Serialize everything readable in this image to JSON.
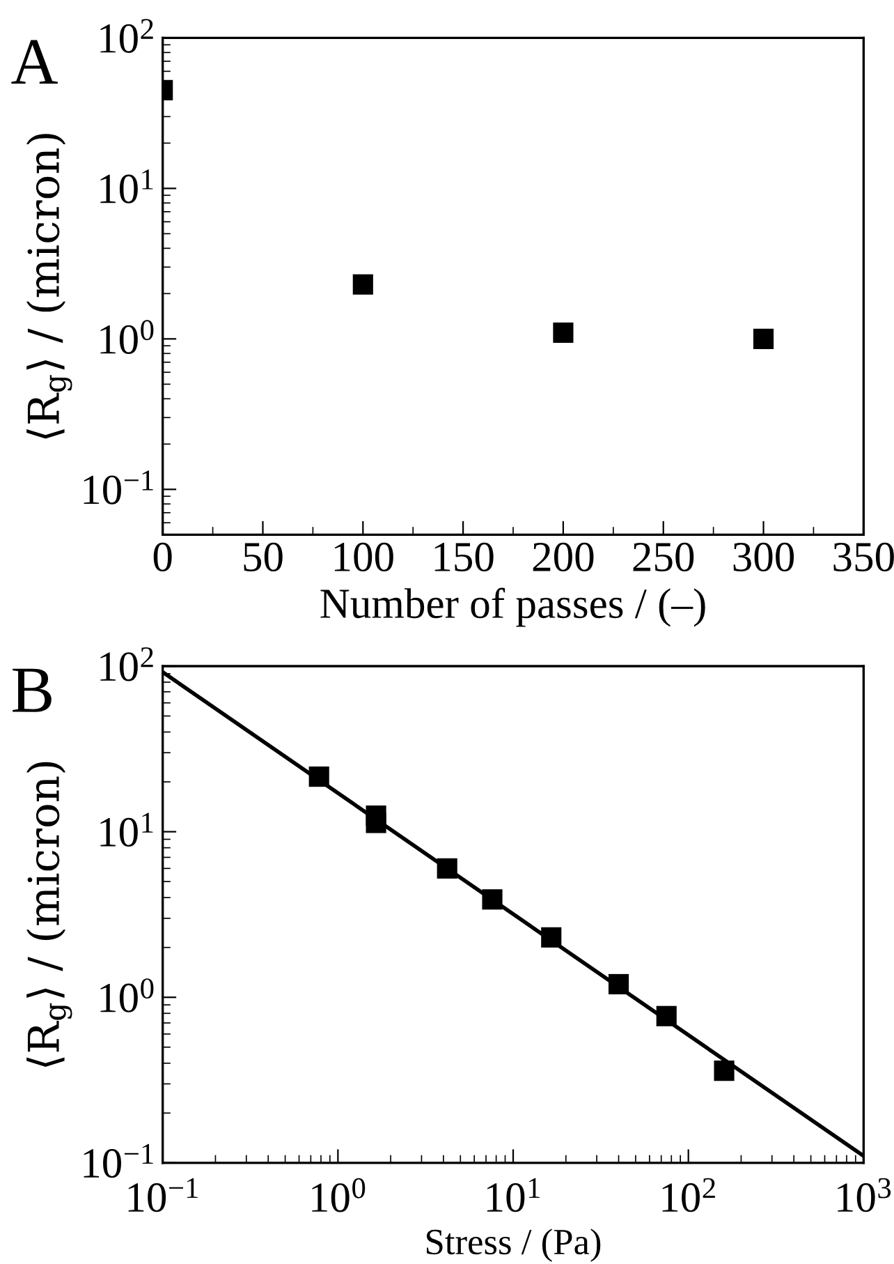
{
  "chart_data": [
    {
      "type": "scatter",
      "title": "A",
      "xlabel": "Number of passes / (–)",
      "ylabel": "⟨R$_{g}$⟩ / (micron)",
      "log": "y",
      "marker": "square",
      "grid": false,
      "legend": false,
      "x": [
        0,
        100,
        200,
        300
      ],
      "series": [
        {
          "color": "#000000",
          "values": [
            45,
            2.3,
            1.1,
            1.0
          ]
        }
      ],
      "xlim": [
        0,
        350
      ],
      "xticks": [
        0,
        50,
        100,
        150,
        200,
        250,
        300,
        350
      ],
      "ylim": [
        0.05,
        100
      ],
      "yticks": [
        {
          "value": 0.1,
          "label": "10$^{−1}$"
        },
        {
          "value": 1,
          "label": "10$^{0}$"
        },
        {
          "value": 10,
          "label": "10$^{1}$"
        },
        {
          "value": 100,
          "label": "10$^{2}$"
        }
      ]
    },
    {
      "type": "scatter",
      "title": "B",
      "xlabel": "Stress / (Pa)",
      "ylabel": "⟨R$_{g}$⟩ / (micron)",
      "log": "xy",
      "marker": "square",
      "grid": false,
      "legend": false,
      "series": [
        {
          "color": "#000000",
          "x": [
            0.78,
            1.65,
            1.65,
            4.2,
            7.6,
            16.5,
            40,
            75,
            160
          ],
          "values": [
            21.5,
            12.5,
            11.3,
            6.0,
            3.9,
            2.3,
            1.2,
            0.77,
            0.36
          ]
        },
        {
          "type": "line",
          "marker": "none",
          "color": "#000000",
          "x": [
            0.1,
            1000
          ],
          "values": [
            92,
            0.11
          ]
        }
      ],
      "xlim": [
        0.1,
        1000
      ],
      "xticks": [
        {
          "value": 0.1,
          "label": "10$^{−1}$"
        },
        {
          "value": 1,
          "label": "10$^{0}$"
        },
        {
          "value": 10,
          "label": "10$^{1}$"
        },
        {
          "value": 100,
          "label": "10$^{2}$"
        },
        {
          "value": 1000,
          "label": "10$^{3}$"
        }
      ],
      "ylim": [
        0.1,
        100
      ],
      "yticks": [
        {
          "value": 0.1,
          "label": "10$^{−1}$"
        },
        {
          "value": 1,
          "label": "10$^{0}$"
        },
        {
          "value": 10,
          "label": "10$^{1}$"
        },
        {
          "value": 100,
          "label": "10$^{2}$"
        }
      ]
    }
  ]
}
